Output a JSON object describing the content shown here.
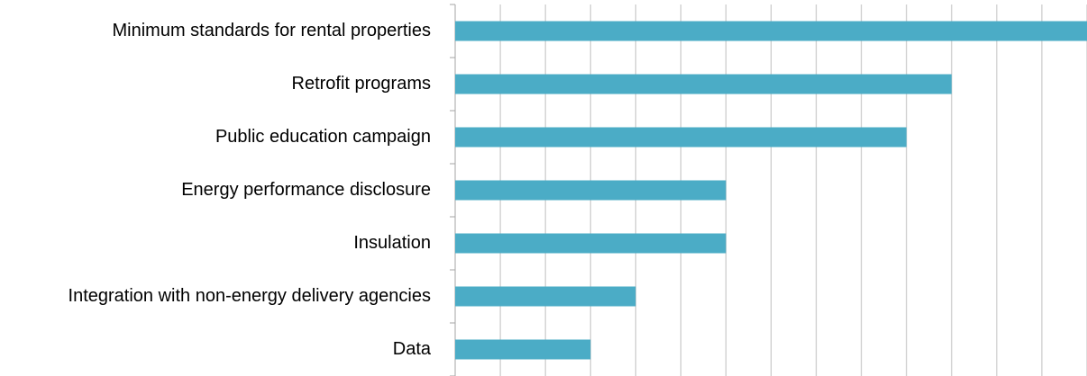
{
  "chart_data": {
    "type": "bar",
    "orientation": "horizontal",
    "categories": [
      "Minimum standards for rental properties",
      "Retrofit programs",
      "Public education campaign",
      "Energy performance disclosure",
      "Insulation",
      "Integration with non-energy delivery agencies",
      "Data"
    ],
    "values": [
      14,
      11,
      10,
      6,
      6,
      4,
      3
    ],
    "color": "#4bacc6",
    "xlim": [
      0,
      14
    ],
    "xticks": [
      0,
      1,
      2,
      3,
      4,
      5,
      6,
      7,
      8,
      9,
      10,
      11,
      12,
      13,
      14
    ],
    "grid": true
  }
}
